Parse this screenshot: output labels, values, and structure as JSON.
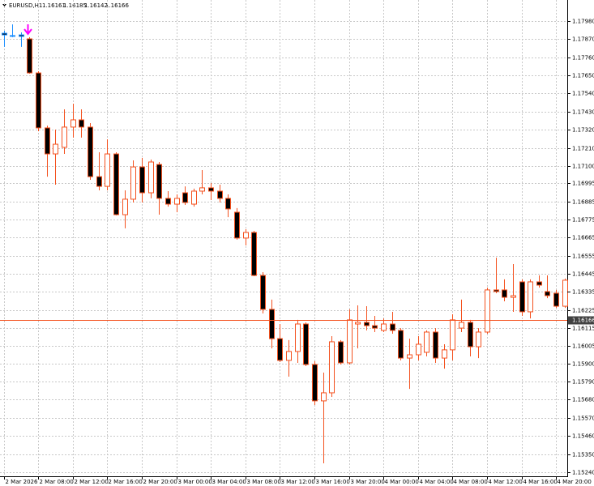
{
  "chart_data": {
    "type": "candlestick",
    "symbol": "EURUSD,H1",
    "ohlc": [
      1.16161,
      1.16185,
      1.16142,
      1.16166
    ],
    "current_price": 1.16166,
    "current_price_color": "#f4511e",
    "up_body": "#ffffff",
    "down_body": "#000000",
    "grid": true,
    "ylim": [
      1.15215,
      1.18108
    ],
    "yticks": [
      {
        "value": 1.1798,
        "label": "1.17980"
      },
      {
        "value": 1.1787,
        "label": "1.17870"
      },
      {
        "value": 1.1776,
        "label": "1.17760"
      },
      {
        "value": 1.1765,
        "label": "1.17650"
      },
      {
        "value": 1.1754,
        "label": "1.17540"
      },
      {
        "value": 1.1743,
        "label": "1.17430"
      },
      {
        "value": 1.1732,
        "label": "1.17320"
      },
      {
        "value": 1.1721,
        "label": "1.17210"
      },
      {
        "value": 1.171,
        "label": "1.17100"
      },
      1.16995,
      1.16885,
      1.16775,
      1.16665,
      1.16555,
      1.16445,
      1.16335,
      1.16225,
      1.16115,
      {
        "value": 1.16005,
        "label": "1.16005"
      },
      {
        "value": 1.159,
        "label": "1.15900"
      },
      {
        "value": 1.1579,
        "label": "1.15790"
      },
      {
        "value": 1.1568,
        "label": "1.15680"
      },
      {
        "value": 1.1557,
        "label": "1.15570"
      },
      {
        "value": 1.1546,
        "label": "1.15460"
      },
      {
        "value": 1.1535,
        "label": "1.15350"
      },
      {
        "value": 1.1524,
        "label": "1.15240"
      }
    ],
    "xtick_labels": [
      "2 Mar 2026",
      "2 Mar 08:00",
      "2 Mar 12:00",
      "2 Mar 16:00",
      "2 Mar 20:00",
      "3 Mar 00:00",
      "3 Mar 04:00",
      "3 Mar 08:00",
      "3 Mar 12:00",
      "3 Mar 16:00",
      "3 Mar 20:00",
      "4 Mar 00:00",
      "4 Mar 04:00",
      "4 Mar 08:00",
      "4 Mar 12:00",
      "4 Mar 16:00",
      "4 Mar 20:00"
    ],
    "series": [
      {
        "color": "#1e90ff",
        "open": [
          1.17906,
          1.17892,
          1.17896
        ],
        "high": [
          1.17921,
          1.1796,
          1.17911
        ],
        "low": [
          1.17823,
          1.17882,
          1.17823
        ],
        "close": [
          1.17896,
          1.1789,
          1.17887
        ]
      },
      {
        "color": "#f4511e",
        "open": [
          1.17872,
          1.17665,
          1.17331,
          1.17173,
          1.17213,
          1.17336,
          1.1738,
          1.17336,
          1.17035,
          1.16976,
          1.17173,
          1.16804,
          1.16898,
          1.17094,
          1.16937,
          1.17109,
          1.16903,
          1.16868,
          1.16937,
          1.16868,
          1.16947,
          1.16967,
          1.16947,
          1.16903,
          1.16819,
          1.16662,
          1.16696,
          1.16435,
          1.16229,
          1.16051,
          1.15919,
          1.15973,
          1.1614,
          1.15894,
          1.15673,
          1.15722,
          1.16032,
          1.15904,
          1.1614,
          1.1615,
          1.1613,
          1.16101,
          1.1614,
          1.16101,
          1.15933,
          1.15953,
          1.15968,
          1.16091,
          1.15933,
          1.15983,
          1.16115,
          1.1615,
          1.16002,
          1.16091,
          1.16347,
          1.16347,
          1.16302,
          1.16396,
          1.16214,
          1.16396,
          1.16337,
          1.16327,
          1.16248
        ],
        "high": [
          1.17882,
          1.17675,
          1.17345,
          1.17321,
          1.17444,
          1.17478,
          1.17444,
          1.1736,
          1.17183,
          1.17262,
          1.17183,
          1.16952,
          1.17134,
          1.17149,
          1.17139,
          1.17124,
          1.16947,
          1.16927,
          1.16976,
          1.16962,
          1.17075,
          1.16996,
          1.16986,
          1.16927,
          1.16844,
          1.16716,
          1.16706,
          1.16455,
          1.16288,
          1.1614,
          1.16042,
          1.16165,
          1.1615,
          1.15914,
          1.15845,
          1.16066,
          1.16042,
          1.16229,
          1.16253,
          1.16248,
          1.16189,
          1.16174,
          1.16214,
          1.16115,
          1.16051,
          1.16066,
          1.16101,
          1.16115,
          1.16017,
          1.16199,
          1.16288,
          1.16165,
          1.16115,
          1.16361,
          1.16543,
          1.16411,
          1.16504,
          1.16411,
          1.16411,
          1.16435,
          1.16435,
          1.16347,
          1.16416
        ],
        "low": [
          1.1766,
          1.17311,
          1.17035,
          1.16986,
          1.17173,
          1.17272,
          1.17272,
          1.17016,
          1.16952,
          1.16952,
          1.168,
          1.16721,
          1.16878,
          1.16878,
          1.16903,
          1.16804,
          1.16853,
          1.16819,
          1.16863,
          1.16853,
          1.16927,
          1.16893,
          1.16878,
          1.16789,
          1.16652,
          1.16617,
          1.1643,
          1.16204,
          1.15992,
          1.15909,
          1.1582,
          1.15904,
          1.15884,
          1.15648,
          1.15294,
          1.15697,
          1.15894,
          1.15894,
          1.15992,
          1.16101,
          1.16091,
          1.16091,
          1.16081,
          1.15919,
          1.15746,
          1.15919,
          1.15943,
          1.15904,
          1.15869,
          1.15919,
          1.16091,
          1.15943,
          1.15933,
          1.16081,
          1.16327,
          1.16278,
          1.16214,
          1.16189,
          1.16174,
          1.16361,
          1.16297,
          1.16238,
          1.16238
        ],
        "close": [
          1.17665,
          1.17331,
          1.17173,
          1.17232,
          1.17336,
          1.1738,
          1.17336,
          1.17035,
          1.16976,
          1.17173,
          1.16804,
          1.16898,
          1.17094,
          1.16937,
          1.17124,
          1.16903,
          1.16868,
          1.16903,
          1.16878,
          1.16947,
          1.16967,
          1.16947,
          1.16903,
          1.16839,
          1.16662,
          1.16696,
          1.16435,
          1.16229,
          1.16051,
          1.15919,
          1.15973,
          1.1614,
          1.15894,
          1.15673,
          1.15722,
          1.16032,
          1.15904,
          1.16165,
          1.1615,
          1.1613,
          1.16115,
          1.1614,
          1.16101,
          1.15933,
          1.15953,
          1.16017,
          1.16091,
          1.15933,
          1.15983,
          1.16165,
          1.1615,
          1.16002,
          1.16091,
          1.16347,
          1.16337,
          1.16302,
          1.16312,
          1.16214,
          1.16396,
          1.16376,
          1.16312,
          1.16248,
          1.16406
        ]
      }
    ]
  }
}
